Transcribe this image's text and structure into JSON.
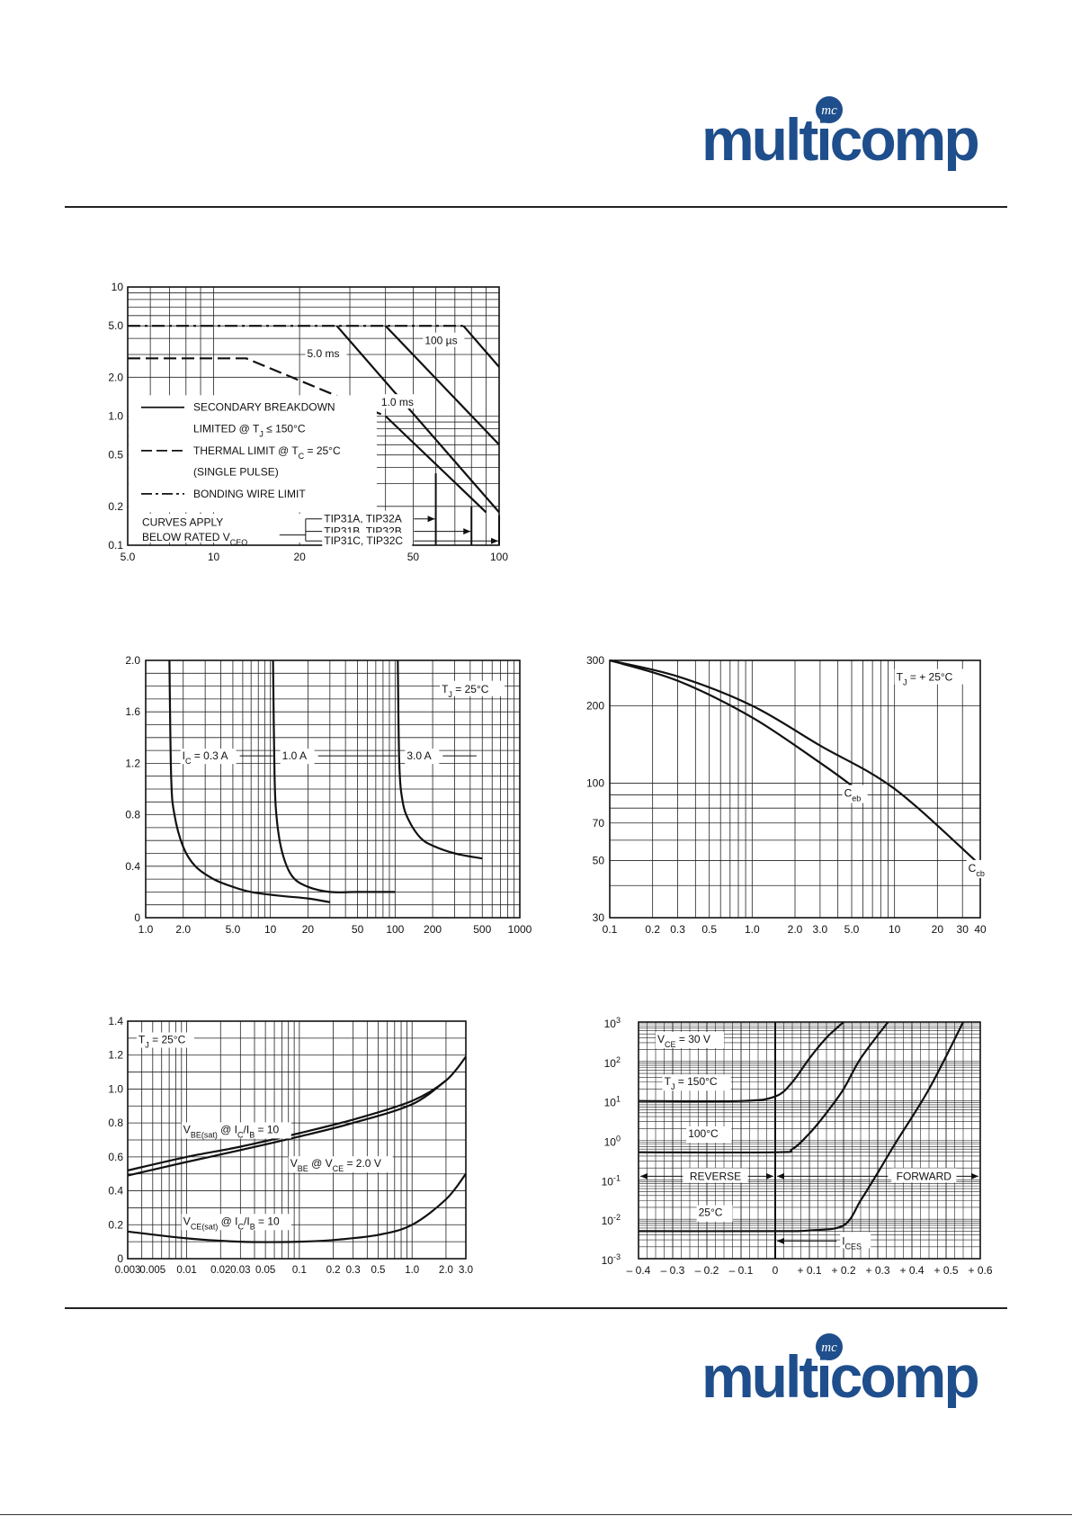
{
  "brand": {
    "name": "multicomp",
    "mark": "mc",
    "color": "#1f4e8c"
  },
  "charts": {
    "soa": {
      "x_ticks": [
        "5.0",
        "10",
        "20",
        "50",
        "100"
      ],
      "y_ticks": [
        "10",
        "5.0",
        "2.0",
        "1.0",
        "0.5",
        "0.2",
        "0.1"
      ],
      "labels": {
        "us100": "100 µs",
        "ms5": "5.0 ms",
        "ms1": "1.0 ms",
        "leg1a": "SECONDARY BREAKDOWN",
        "leg1b": "LIMITED @ T",
        "leg1b_sub": "J",
        "leg1b_tail": " ≤ 150°C",
        "leg2a": "THERMAL LIMIT @ T",
        "leg2a_sub": "C",
        "leg2a_tail": " = 25°C",
        "leg2b": "(SINGLE PULSE)",
        "leg3": "BONDING WIRE LIMIT",
        "curves1": "CURVES APPLY",
        "curves2": "BELOW RATED V",
        "curves2_sub": "CEO",
        "tipA": "TIP31A, TIP32A",
        "tipB": "TIP31B, TIP32B",
        "tipC": "TIP31C, TIP32C"
      }
    },
    "sat": {
      "x_ticks": [
        "1.0",
        "2.0",
        "5.0",
        "10",
        "20",
        "50",
        "100",
        "200",
        "500",
        "1000"
      ],
      "y_ticks": [
        "2.0",
        "1.6",
        "1.2",
        "0.8",
        "0.4",
        "0"
      ],
      "labels": {
        "tj_pre": "T",
        "tj_sub": "J",
        "tj_tail": " = 25°C",
        "ic_pre": "I",
        "ic_sub": "C",
        "ic_tail": " = 0.3 A",
        "a1": "1.0 A",
        "a3": "3.0 A"
      }
    },
    "cap": {
      "x_ticks": [
        "0.1",
        "0.2",
        "0.3",
        "0.5",
        "1.0",
        "2.0",
        "3.0",
        "5.0",
        "10",
        "20",
        "30",
        "40"
      ],
      "y_ticks": [
        "300",
        "200",
        "100",
        "70",
        "50",
        "30"
      ],
      "labels": {
        "tj_pre": "T",
        "tj_sub": "J",
        "tj_tail": " = + 25°C",
        "ceb_pre": "C",
        "ceb_sub": "eb",
        "ccb_pre": "C",
        "ccb_sub": "cb"
      }
    },
    "on": {
      "x_ticks": [
        "0.003",
        "0.005",
        "0.01",
        "0.02",
        "0.03",
        "0.05",
        "0.1",
        "0.2",
        "0.3",
        "0.5",
        "1.0",
        "2.0",
        "3.0"
      ],
      "y_ticks": [
        "1.4",
        "1.2",
        "1.0",
        "0.8",
        "0.6",
        "0.4",
        "0.2",
        "0"
      ],
      "labels": {
        "tj_pre": "T",
        "tj_sub": "J",
        "tj_tail": " = 25°C",
        "vbe_sat_pre": "V",
        "vbe_sat_sub": "BE(sat)",
        "vbe_sat_mid": " @ I",
        "vbe_sat_sub2": "C",
        "vbe_sat_mid2": "/I",
        "vbe_sat_sub3": "B",
        "vbe_sat_tail": " = 10",
        "vbe_pre": "V",
        "vbe_sub": "BE",
        "vbe_mid": " @ V",
        "vbe_sub2": "CE",
        "vbe_tail": " = 2.0 V",
        "vce_pre": "V",
        "vce_sub": "CE(sat)",
        "vce_mid": " @ I",
        "vce_sub2": "C",
        "vce_mid2": "/I",
        "vce_sub3": "B",
        "vce_tail": " = 10"
      }
    },
    "cut": {
      "x_ticks": [
        "– 0.4",
        "– 0.3",
        "– 0.2",
        "– 0.1",
        "0",
        "+ 0.1",
        "+ 0.2",
        "+ 0.3",
        "+ 0.4",
        "+ 0.5",
        "+ 0.6"
      ],
      "y_base": "10",
      "y_exps": [
        "3",
        "2",
        "1",
        "0",
        "-1",
        "-2",
        "-3"
      ],
      "labels": {
        "vce_pre": "V",
        "vce_sub": "CE",
        "vce_tail": " = 30 V",
        "tj_pre": "T",
        "tj_sub": "J",
        "tj_tail": " = 150°C",
        "t100": "100°C",
        "t25": "25°C",
        "rev": "REVERSE",
        "fwd": "FORWARD",
        "ices_pre": "I",
        "ices_sub": "CES"
      }
    }
  },
  "chart_data": [
    {
      "type": "line",
      "xscale": "log",
      "yscale": "log",
      "xlim": [
        5,
        100
      ],
      "ylim": [
        0.1,
        10
      ],
      "series": [
        {
          "name": "100 µs",
          "x": [
            5,
            75,
            100
          ],
          "y": [
            5,
            5,
            2.4
          ]
        },
        {
          "name": "1.0 ms",
          "x": [
            5,
            40,
            100
          ],
          "y": [
            5,
            5,
            0.6
          ]
        },
        {
          "name": "5.0 ms",
          "x": [
            5,
            27,
            100
          ],
          "y": [
            5,
            5,
            0.18
          ]
        },
        {
          "x": [
            5,
            13,
            40,
            90
          ],
          "y": [
            2.8,
            2.8,
            1.0,
            0.18
          ]
        }
      ]
    },
    {
      "type": "line",
      "xscale": "log",
      "xlim": [
        1,
        1000
      ],
      "ylim": [
        0,
        2.0
      ],
      "series": [
        {
          "name": "I_C = 0.3 A",
          "x": [
            1.55,
            1.6,
            1.7,
            2.0,
            2.5,
            3.5,
            5.0,
            7.0,
            12,
            20,
            30
          ],
          "y": [
            2.0,
            1.1,
            0.8,
            0.55,
            0.4,
            0.3,
            0.24,
            0.2,
            0.17,
            0.15,
            0.12
          ]
        },
        {
          "name": "1.0 A",
          "x": [
            10.5,
            10.8,
            11.3,
            12.5,
            15,
            20,
            30,
            50,
            100
          ],
          "y": [
            2.0,
            1.1,
            0.75,
            0.5,
            0.32,
            0.24,
            0.2,
            0.2,
            0.2
          ]
        },
        {
          "name": "3.0 A",
          "x": [
            105,
            108,
            115,
            130,
            160,
            200,
            300,
            500
          ],
          "y": [
            2.0,
            1.2,
            0.9,
            0.75,
            0.62,
            0.56,
            0.5,
            0.46
          ]
        }
      ]
    },
    {
      "type": "line",
      "xscale": "log",
      "yscale": "log",
      "xlim": [
        0.1,
        40
      ],
      "ylim": [
        30,
        300
      ],
      "series": [
        {
          "name": "Ceb",
          "x": [
            0.1,
            0.3,
            1.0,
            3.0,
            5.0
          ],
          "y": [
            300,
            250,
            180,
            120,
            98
          ]
        },
        {
          "name": "Ccb",
          "x": [
            0.1,
            0.3,
            1.0,
            3.0,
            10,
            40
          ],
          "y": [
            300,
            260,
            200,
            140,
            95,
            48
          ]
        }
      ]
    },
    {
      "type": "line",
      "xscale": "log",
      "xlim": [
        0.003,
        3.0
      ],
      "ylim": [
        0,
        1.4
      ],
      "series": [
        {
          "name": "V_BE(sat) @ I_C/I_B = 10",
          "x": [
            0.003,
            0.01,
            0.03,
            0.1,
            0.3,
            1.0,
            2.0,
            3.0
          ],
          "y": [
            0.52,
            0.6,
            0.66,
            0.74,
            0.82,
            0.93,
            1.05,
            1.19
          ]
        },
        {
          "name": "V_BE @ V_CE = 2.0 V",
          "x": [
            0.003,
            0.01,
            0.03,
            0.1,
            0.3,
            1.0,
            2.0
          ],
          "y": [
            0.49,
            0.57,
            0.64,
            0.72,
            0.8,
            0.91,
            1.05
          ]
        },
        {
          "name": "V_CE(sat) @ I_C/I_B = 10",
          "x": [
            0.003,
            0.01,
            0.03,
            0.1,
            0.2,
            0.5,
            1.0,
            2.0,
            3.0
          ],
          "y": [
            0.16,
            0.12,
            0.1,
            0.1,
            0.11,
            0.14,
            0.2,
            0.35,
            0.5
          ]
        }
      ]
    },
    {
      "type": "line",
      "yscale": "log",
      "xlim": [
        -0.4,
        0.6
      ],
      "ylim": [
        0.001,
        1000
      ],
      "series": [
        {
          "name": "T_J = 150°C",
          "x": [
            -0.4,
            -0.1,
            0,
            0.05,
            0.1,
            0.15,
            0.2
          ],
          "y": [
            10,
            10,
            13,
            30,
            120,
            400,
            1000
          ]
        },
        {
          "name": "100°C",
          "x": [
            -0.4,
            0,
            0.05,
            0.1,
            0.15,
            0.2,
            0.25,
            0.33
          ],
          "y": [
            0.5,
            0.5,
            0.6,
            1.5,
            5,
            20,
            120,
            1000
          ]
        },
        {
          "name": "25°C",
          "x": [
            -0.4,
            0,
            0.1,
            0.2,
            0.25,
            0.3,
            0.35,
            0.45,
            0.55
          ],
          "y": [
            0.005,
            0.005,
            0.0052,
            0.007,
            0.03,
            0.15,
            0.8,
            20,
            1000
          ]
        }
      ]
    }
  ]
}
